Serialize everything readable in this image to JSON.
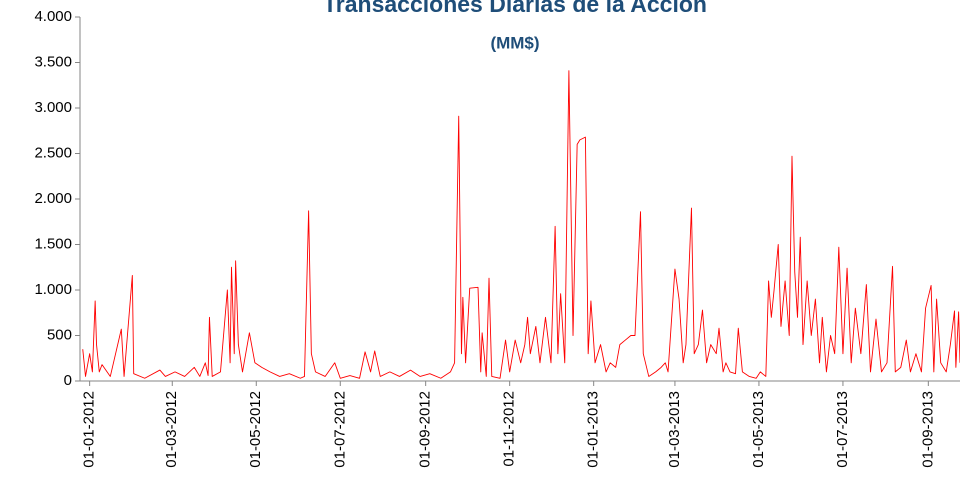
{
  "chart_data": {
    "type": "line",
    "title": "Transacciones Diarias de la Acción",
    "subtitle": "(MM$)",
    "xlim": [
      "2011-12-25",
      "2013-09-24"
    ],
    "xticks": [
      {
        "value": "2012-01-01",
        "label": "01-01-2012"
      },
      {
        "value": "2012-03-01",
        "label": "01-03-2012"
      },
      {
        "value": "2012-05-01",
        "label": "01-05-2012"
      },
      {
        "value": "2012-07-01",
        "label": "01-07-2012"
      },
      {
        "value": "2012-09-01",
        "label": "01-09-2012"
      },
      {
        "value": "2012-11-01",
        "label": "01-11-2012"
      },
      {
        "value": "2013-01-01",
        "label": "01-01-2013"
      },
      {
        "value": "2013-03-01",
        "label": "01-03-2013"
      },
      {
        "value": "2013-05-01",
        "label": "01-05-2013"
      },
      {
        "value": "2013-07-01",
        "label": "01-07-2013"
      },
      {
        "value": "2013-09-01",
        "label": "01-09-2013"
      }
    ],
    "ylim": [
      0,
      4000
    ],
    "yticks": [
      0,
      500,
      {
        "value": 1000,
        "label": "1.000"
      },
      {
        "value": 1500,
        "label": "1.500"
      },
      {
        "value": 2000,
        "label": "2.000"
      },
      {
        "value": 2500,
        "label": "2.500"
      },
      {
        "value": 3000,
        "label": "3.000"
      },
      {
        "value": 3500,
        "label": "3.500"
      },
      {
        "value": 4000,
        "label": "4.000"
      }
    ],
    "x": [
      "2011-12-27",
      "2011-12-29",
      "2012-01-01",
      "2012-01-03",
      "2012-01-05",
      "2012-01-06",
      "2012-01-08",
      "2012-01-10",
      "2012-01-16",
      "2012-01-24",
      "2012-01-26",
      "2012-02-01",
      "2012-02-02",
      "2012-02-10",
      "2012-02-21",
      "2012-02-25",
      "2012-03-03",
      "2012-03-10",
      "2012-03-17",
      "2012-03-21",
      "2012-03-25",
      "2012-03-27",
      "2012-03-28",
      "2012-03-30",
      "2012-04-05",
      "2012-04-10",
      "2012-04-12",
      "2012-04-13",
      "2012-04-15",
      "2012-04-16",
      "2012-04-18",
      "2012-04-21",
      "2012-04-26",
      "2012-04-30",
      "2012-05-05",
      "2012-05-11",
      "2012-05-18",
      "2012-05-25",
      "2012-06-02",
      "2012-06-05",
      "2012-06-08",
      "2012-06-10",
      "2012-06-13",
      "2012-06-20",
      "2012-06-27",
      "2012-07-01",
      "2012-07-08",
      "2012-07-15",
      "2012-07-19",
      "2012-07-23",
      "2012-07-26",
      "2012-07-30",
      "2012-08-06",
      "2012-08-13",
      "2012-08-21",
      "2012-08-28",
      "2012-09-04",
      "2012-09-12",
      "2012-09-19",
      "2012-09-22",
      "2012-09-25",
      "2012-09-27",
      "2012-09-28",
      "2012-09-30",
      "2012-10-03",
      "2012-10-09",
      "2012-10-11",
      "2012-10-12",
      "2012-10-15",
      "2012-10-17",
      "2012-10-19",
      "2012-10-25",
      "2012-10-29",
      "2012-11-01",
      "2012-11-05",
      "2012-11-09",
      "2012-11-12",
      "2012-11-14",
      "2012-11-16",
      "2012-11-20",
      "2012-11-23",
      "2012-11-27",
      "2012-12-01",
      "2012-12-04",
      "2012-12-06",
      "2012-12-08",
      "2012-12-11",
      "2012-12-14",
      "2012-12-17",
      "2012-12-20",
      "2012-12-22",
      "2012-12-26",
      "2012-12-28",
      "2012-12-30",
      "2013-01-02",
      "2013-01-06",
      "2013-01-10",
      "2013-01-13",
      "2013-01-17",
      "2013-01-20",
      "2013-01-24",
      "2013-01-28",
      "2013-01-31",
      "2013-02-04",
      "2013-02-06",
      "2013-02-10",
      "2013-02-15",
      "2013-02-19",
      "2013-02-22",
      "2013-02-24",
      "2013-03-01",
      "2013-03-04",
      "2013-03-07",
      "2013-03-09",
      "2013-03-13",
      "2013-03-15",
      "2013-03-18",
      "2013-03-21",
      "2013-03-24",
      "2013-03-27",
      "2013-03-31",
      "2013-04-02",
      "2013-04-05",
      "2013-04-07",
      "2013-04-10",
      "2013-04-14",
      "2013-04-16",
      "2013-04-19",
      "2013-04-24",
      "2013-04-29",
      "2013-05-02",
      "2013-05-06",
      "2013-05-08",
      "2013-05-10",
      "2013-05-12",
      "2013-05-15",
      "2013-05-17",
      "2013-05-20",
      "2013-05-23",
      "2013-05-25",
      "2013-05-27",
      "2013-05-29",
      "2013-05-31",
      "2013-06-02",
      "2013-06-05",
      "2013-06-08",
      "2013-06-11",
      "2013-06-14",
      "2013-06-16",
      "2013-06-19",
      "2013-06-22",
      "2013-06-25",
      "2013-06-28",
      "2013-07-01",
      "2013-07-04",
      "2013-07-07",
      "2013-07-10",
      "2013-07-14",
      "2013-07-18",
      "2013-07-21",
      "2013-07-25",
      "2013-07-29",
      "2013-08-02",
      "2013-08-06",
      "2013-08-08",
      "2013-08-12",
      "2013-08-16",
      "2013-08-19",
      "2013-08-23",
      "2013-08-27",
      "2013-08-30",
      "2013-09-03",
      "2013-09-05",
      "2013-09-07",
      "2013-09-10",
      "2013-09-14",
      "2013-09-17",
      "2013-09-20",
      "2013-09-21",
      "2013-09-23",
      "2013-09-24"
    ],
    "series": [
      {
        "color": "#ff0000",
        "values": [
          350,
          50,
          300,
          100,
          880,
          400,
          100,
          180,
          50,
          570,
          50,
          1160,
          80,
          30,
          120,
          50,
          100,
          50,
          150,
          50,
          200,
          60,
          700,
          50,
          100,
          1000,
          200,
          1250,
          300,
          1320,
          400,
          100,
          530,
          200,
          150,
          100,
          50,
          80,
          30,
          50,
          1870,
          300,
          100,
          50,
          200,
          30,
          60,
          30,
          320,
          100,
          330,
          50,
          100,
          50,
          120,
          50,
          80,
          30,
          100,
          200,
          2910,
          300,
          920,
          200,
          1020,
          1030,
          100,
          530,
          50,
          1130,
          50,
          30,
          450,
          100,
          450,
          200,
          400,
          700,
          300,
          600,
          200,
          700,
          200,
          1700,
          300,
          960,
          200,
          3410,
          500,
          2600,
          2650,
          2680,
          300,
          880,
          200,
          400,
          100,
          200,
          150,
          400,
          450,
          500,
          500,
          1860,
          300,
          50,
          100,
          150,
          200,
          100,
          1230,
          900,
          200,
          400,
          1900,
          300,
          400,
          780,
          200,
          400,
          300,
          580,
          100,
          200,
          100,
          80,
          580,
          100,
          50,
          30,
          100,
          50,
          1100,
          700,
          1000,
          1500,
          600,
          1100,
          500,
          2470,
          1200,
          700,
          1580,
          400,
          1100,
          500,
          900,
          200,
          700,
          100,
          500,
          300,
          1470,
          300,
          1240,
          200,
          800,
          300,
          1060,
          100,
          680,
          100,
          200,
          1260,
          100,
          150,
          450,
          100,
          300,
          100,
          800,
          1050,
          100,
          900,
          200,
          100,
          400,
          770,
          150,
          760,
          200
        ]
      }
    ]
  }
}
